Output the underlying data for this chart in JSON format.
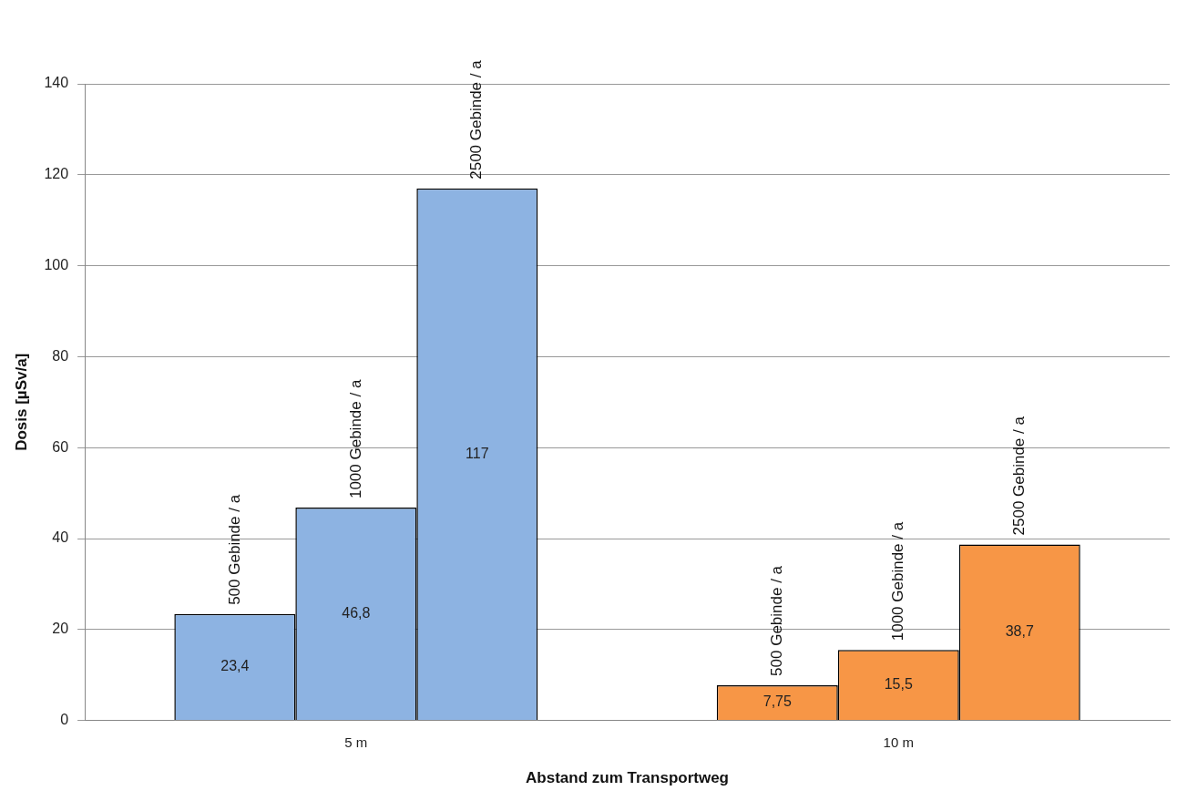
{
  "chart_data": {
    "type": "bar",
    "xlabel": "Abstand zum Transportweg",
    "ylabel": "Dosis [µSv/a]",
    "categories": [
      "5 m",
      "10 m"
    ],
    "series": [
      {
        "name": "500 Gebinde / a",
        "colors": [
          "#8db3e2",
          "#f79646"
        ],
        "values": [
          23.4,
          7.75
        ],
        "value_labels": [
          "23,4",
          "7,75"
        ]
      },
      {
        "name": "1000 Gebinde / a",
        "colors": [
          "#8db3e2",
          "#f79646"
        ],
        "values": [
          46.8,
          15.5
        ],
        "value_labels": [
          "46,8",
          "15,5"
        ]
      },
      {
        "name": "2500 Gebinde / a",
        "colors": [
          "#8db3e2",
          "#f79646"
        ],
        "values": [
          117,
          38.7
        ],
        "value_labels": [
          "117",
          "38,7"
        ]
      }
    ],
    "ylim": [
      0,
      140
    ],
    "yticks": [
      0,
      20,
      40,
      60,
      80,
      100,
      120,
      140
    ],
    "grid": "y",
    "legend": false
  }
}
